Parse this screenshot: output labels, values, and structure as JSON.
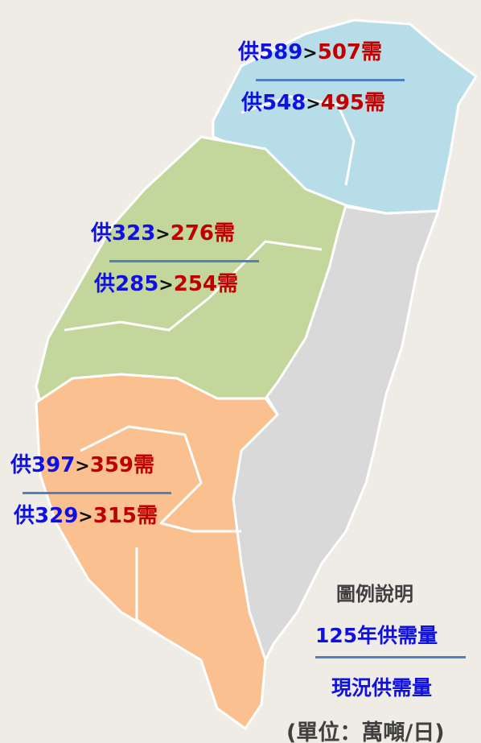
{
  "words": {
    "supply": "供",
    "gt": ">",
    "demand": "需"
  },
  "regions": [
    {
      "future": {
        "supply": 589,
        "demand": 507
      },
      "current": {
        "supply": 548,
        "demand": 495
      }
    },
    {
      "future": {
        "supply": 323,
        "demand": 276
      },
      "current": {
        "supply": 285,
        "demand": 254
      }
    },
    {
      "future": {
        "supply": 397,
        "demand": 359
      },
      "current": {
        "supply": 329,
        "demand": 315
      }
    }
  ],
  "legend": {
    "title": "圖例說明",
    "future": "125年供需量",
    "current": "現況供需量",
    "unit": "(單位：萬噸/日)"
  }
}
